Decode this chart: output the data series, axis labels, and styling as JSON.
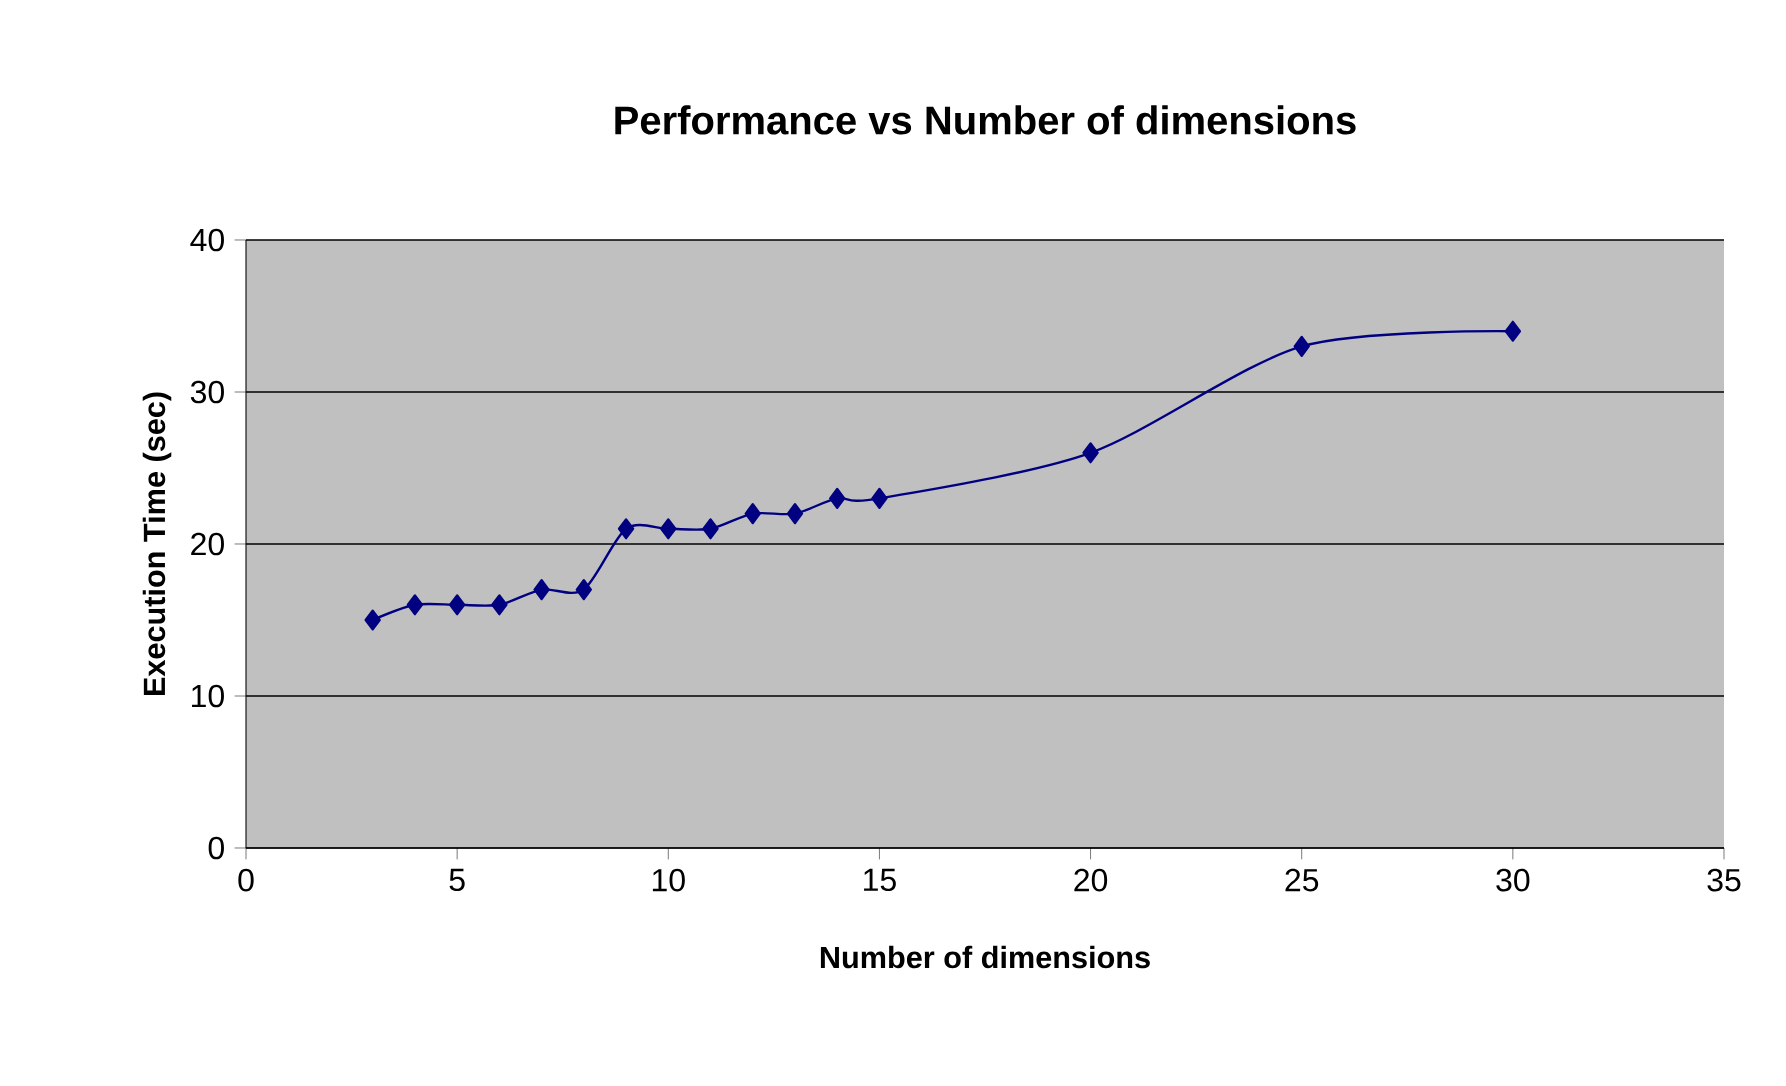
{
  "chart_data": {
    "type": "line",
    "title": "Performance vs Number of dimensions",
    "xlabel": "Number of dimensions",
    "ylabel": "Execution Time (sec)",
    "x": [
      3,
      4,
      5,
      6,
      7,
      8,
      9,
      10,
      11,
      12,
      13,
      14,
      15,
      20,
      25,
      30
    ],
    "series": [
      {
        "color": "#000080",
        "values": [
          15,
          16,
          16,
          16,
          17,
          17,
          21,
          21,
          21,
          22,
          22,
          23,
          23,
          26,
          33,
          34
        ]
      }
    ],
    "xlim": [
      0,
      35
    ],
    "xticks": [
      0,
      5,
      10,
      15,
      20,
      25,
      30,
      35
    ],
    "ylim": [
      0,
      40
    ],
    "yticks": [
      0,
      10,
      20,
      30,
      40
    ],
    "grid": "y",
    "marker": "diamond",
    "line_style": "solid"
  }
}
